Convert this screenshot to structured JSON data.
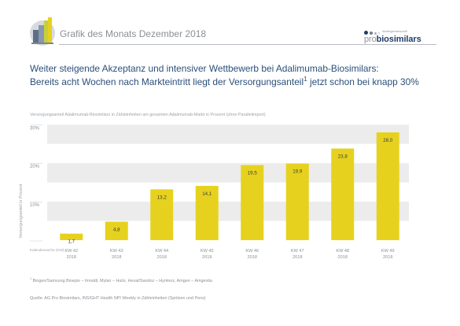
{
  "header": {
    "title": "Grafik des Monats Dezember 2018",
    "brand_small": "Arbeitsgemeinschaft",
    "brand_pro": "pro",
    "brand_bio": "biosimilars"
  },
  "headline": {
    "line1": "Weiter steigende Akzeptanz und intensiver Wettbewerb bei Adalimumab-Biosimilars:",
    "line2_pre": "Bereits acht Wochen nach Markteintritt liegt der Versorgungsanteil",
    "line2_sup": "1",
    "line2_post": " jetzt schon bei knapp 30%"
  },
  "chart_data": {
    "type": "bar",
    "title": "Versorgungsanteil Adalimumab-Biosimilars in Zähleinheiten am gesamten Adalimumab-Markt in Prozent (ohne Parallelimport)",
    "ylabel": "Versorgungsanteil in Prozent",
    "xlabel": "Kalenderwoche (KW)",
    "categories": [
      "KW 42|2018",
      "KW 43|2018",
      "KW 44|2018",
      "KW 45|2018",
      "KW 46|2018",
      "KW 47|2018",
      "KW 48|2018",
      "KW 49|2018"
    ],
    "values": [
      1.7,
      4.8,
      13.2,
      14.1,
      19.5,
      19.9,
      23.8,
      28.0
    ],
    "value_labels": [
      "1,7",
      "4,8",
      "13,2",
      "14,1",
      "19,5",
      "19,9",
      "23,8",
      "28,0"
    ],
    "yticks": [
      10,
      20,
      30
    ],
    "ytick_labels": [
      "10%",
      "20%",
      "30%"
    ],
    "ylim": [
      0,
      30
    ],
    "bar_color": "#e6d21e",
    "band_color": "#ececec",
    "grid": true
  },
  "notes": {
    "footnote_mark": "1",
    "footnote": " Biogen/Samsung Bioepis – Imraldi, Mylan – Hulio, Hexal/Sandoz – Hyrimoz, Amgen – Amgevita",
    "source": "Quelle: AG Pro Biosimilars, INSIGHT Health NPI Weekly in Zähleinheiten (Spritzen und Pens)"
  }
}
